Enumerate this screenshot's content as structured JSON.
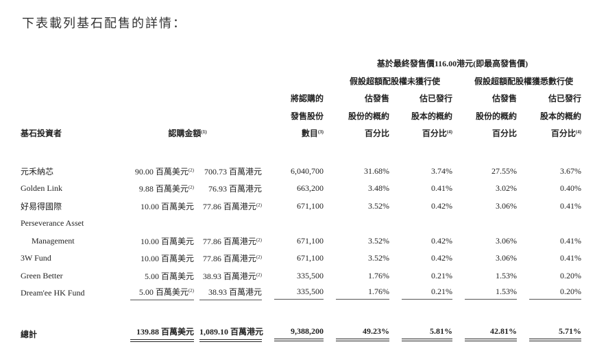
{
  "title": "下表載列基石配售的詳情：",
  "header": {
    "group_top": "基於最終發售價116.00港元(即最高發售價)",
    "group_a": "假設超額配股權未獲行使",
    "group_b": "假設超額配股權獲悉數行使",
    "investor": "基石投資者",
    "amount": "認購金額",
    "amount_note": "(1)",
    "shares": [
      "將認購的",
      "發售股份",
      "數目"
    ],
    "shares_note": "(3)",
    "pct_offer": [
      "估發售",
      "股份的概約",
      "百分比"
    ],
    "pct_issued": [
      "估已發行",
      "股本的概約",
      "百分比"
    ],
    "pct_issued_note": "(4)"
  },
  "rows": [
    {
      "name": "元禾納芯",
      "usd": "90.00 百萬美元",
      "usd_note": "(2)",
      "hkd": "700.73 百萬港元",
      "hkd_note": "",
      "shares": "6,040,700",
      "a1": "31.68%",
      "a2": "3.74%",
      "b1": "27.55%",
      "b2": "3.67%"
    },
    {
      "name": "Golden Link",
      "usd": "9.88 百萬美元",
      "usd_note": "(2)",
      "hkd": "76.93 百萬港元",
      "hkd_note": "",
      "shares": "663,200",
      "a1": "3.48%",
      "a2": "0.41%",
      "b1": "3.02%",
      "b2": "0.40%"
    },
    {
      "name": "好易得國際",
      "usd": "10.00 百萬美元",
      "usd_note": "",
      "hkd": "77.86 百萬港元",
      "hkd_note": "(2)",
      "shares": "671,100",
      "a1": "3.52%",
      "a2": "0.42%",
      "b1": "3.06%",
      "b2": "0.41%"
    },
    {
      "name": "Perseverance Asset",
      "name2": "Management",
      "usd": "10.00 百萬美元",
      "usd_note": "",
      "hkd": "77.86 百萬港元",
      "hkd_note": "(2)",
      "shares": "671,100",
      "a1": "3.52%",
      "a2": "0.42%",
      "b1": "3.06%",
      "b2": "0.41%"
    },
    {
      "name": "3W Fund",
      "usd": "10.00 百萬美元",
      "usd_note": "",
      "hkd": "77.86 百萬港元",
      "hkd_note": "(2)",
      "shares": "671,100",
      "a1": "3.52%",
      "a2": "0.42%",
      "b1": "3.06%",
      "b2": "0.41%"
    },
    {
      "name": "Green Better",
      "usd": "5.00 百萬美元",
      "usd_note": "",
      "hkd": "38.93 百萬港元",
      "hkd_note": "(2)",
      "shares": "335,500",
      "a1": "1.76%",
      "a2": "0.21%",
      "b1": "1.53%",
      "b2": "0.20%"
    },
    {
      "name": "Dream'ee HK Fund",
      "usd": "5.00 百萬美元",
      "usd_note": "(2)",
      "hkd": "38.93 百萬港元",
      "hkd_note": "",
      "shares": "335,500",
      "a1": "1.76%",
      "a2": "0.21%",
      "b1": "1.53%",
      "b2": "0.20%"
    }
  ],
  "total": {
    "name": "總計",
    "usd": "139.88 百萬美元",
    "hkd": "1,089.10 百萬港元",
    "shares": "9,388,200",
    "a1": "49.23%",
    "a2": "5.81%",
    "b1": "42.81%",
    "b2": "5.71%"
  }
}
